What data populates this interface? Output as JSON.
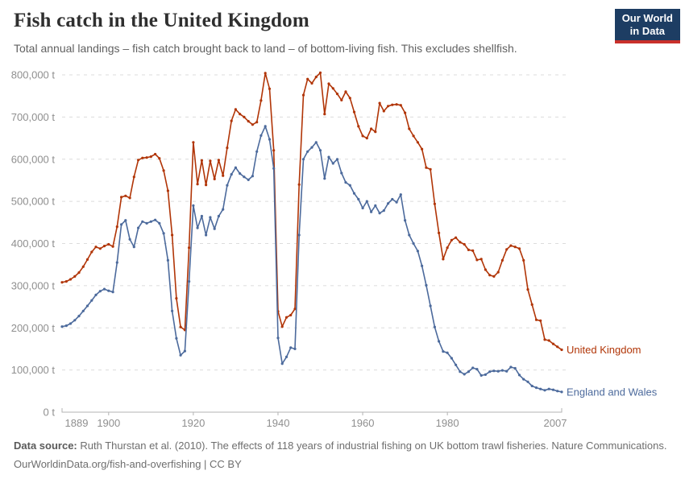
{
  "header": {
    "title": "Fish catch in the United Kingdom",
    "subtitle": "Total annual landings – fish catch brought back to land – of bottom-living fish. This excludes shellfish.",
    "logo": {
      "line1": "Our World",
      "line2": "in Data",
      "bg_color": "#1d3d63",
      "accent_color": "#c9302b"
    }
  },
  "chart_data": {
    "type": "line",
    "title": "Fish catch in the United Kingdom",
    "xlabel": "",
    "ylabel": "",
    "unit": "t",
    "ylim": [
      0,
      800000
    ],
    "xlim": [
      1889,
      2007
    ],
    "grid": "horizontal-dashed",
    "legend_position": "right-end-of-line-labels",
    "marker": "point",
    "colors": {
      "grid": "#dcdcdc",
      "axis": "#b3b3b3",
      "tick_label": "#8f8f8f"
    },
    "yticks": [
      {
        "value": 0,
        "label": "0 t"
      },
      {
        "value": 100000,
        "label": "100,000 t"
      },
      {
        "value": 200000,
        "label": "200,000 t"
      },
      {
        "value": 300000,
        "label": "300,000 t"
      },
      {
        "value": 400000,
        "label": "400,000 t"
      },
      {
        "value": 500000,
        "label": "500,000 t"
      },
      {
        "value": 600000,
        "label": "600,000 t"
      },
      {
        "value": 700000,
        "label": "700,000 t"
      },
      {
        "value": 800000,
        "label": "800,000 t"
      }
    ],
    "xticks": [
      {
        "value": 1889,
        "label": "1889"
      },
      {
        "value": 1900,
        "label": "1900"
      },
      {
        "value": 1920,
        "label": "1920"
      },
      {
        "value": 1940,
        "label": "1940"
      },
      {
        "value": 1960,
        "label": "1960"
      },
      {
        "value": 1980,
        "label": "1980"
      },
      {
        "value": 2007,
        "label": "2007"
      }
    ],
    "x": [
      1889,
      1890,
      1891,
      1892,
      1893,
      1894,
      1895,
      1896,
      1897,
      1898,
      1899,
      1900,
      1901,
      1902,
      1903,
      1904,
      1905,
      1906,
      1907,
      1908,
      1909,
      1910,
      1911,
      1912,
      1913,
      1914,
      1915,
      1916,
      1917,
      1918,
      1919,
      1920,
      1921,
      1922,
      1923,
      1924,
      1925,
      1926,
      1927,
      1928,
      1929,
      1930,
      1931,
      1932,
      1933,
      1934,
      1935,
      1936,
      1937,
      1938,
      1939,
      1940,
      1941,
      1942,
      1943,
      1944,
      1945,
      1946,
      1947,
      1948,
      1949,
      1950,
      1951,
      1952,
      1953,
      1954,
      1955,
      1956,
      1957,
      1958,
      1959,
      1960,
      1961,
      1962,
      1963,
      1964,
      1965,
      1966,
      1967,
      1968,
      1969,
      1970,
      1971,
      1972,
      1973,
      1974,
      1975,
      1976,
      1977,
      1978,
      1979,
      1980,
      1981,
      1982,
      1983,
      1984,
      1985,
      1986,
      1987,
      1988,
      1989,
      1990,
      1991,
      1992,
      1993,
      1994,
      1995,
      1996,
      1997,
      1998,
      1999,
      2000,
      2001,
      2002,
      2003,
      2004,
      2005,
      2006,
      2007
    ],
    "series": [
      {
        "name": "United Kingdom",
        "color": "#B13507",
        "values": [
          308000,
          310000,
          315000,
          322000,
          331000,
          345000,
          362000,
          380000,
          392000,
          388000,
          394000,
          398000,
          393000,
          440000,
          510000,
          513000,
          508000,
          558000,
          598000,
          603000,
          604000,
          606000,
          612000,
          602000,
          573000,
          525000,
          420000,
          270000,
          202000,
          195000,
          390000,
          640000,
          541000,
          597000,
          539000,
          596000,
          553000,
          598000,
          561000,
          627000,
          691000,
          718000,
          707000,
          700000,
          690000,
          682000,
          688000,
          739000,
          804000,
          767000,
          621000,
          239000,
          203000,
          225000,
          230000,
          245000,
          540000,
          752000,
          790000,
          780000,
          795000,
          805000,
          707000,
          779000,
          768000,
          755000,
          740000,
          760000,
          745000,
          712000,
          678000,
          655000,
          650000,
          672000,
          665000,
          733000,
          714000,
          726000,
          729000,
          730000,
          728000,
          710000,
          672000,
          655000,
          640000,
          624000,
          580000,
          576000,
          494000,
          425000,
          363000,
          390000,
          408000,
          414000,
          403000,
          398000,
          385000,
          383000,
          361000,
          363000,
          338000,
          325000,
          322000,
          332000,
          360000,
          386000,
          395000,
          392000,
          388000,
          360000,
          291000,
          255000,
          219000,
          217000,
          172000,
          170000,
          162000,
          155000,
          148000
        ]
      },
      {
        "name": "England and Wales",
        "color": "#4C6A9C",
        "values": [
          203000,
          205000,
          210000,
          218000,
          228000,
          240000,
          252000,
          265000,
          278000,
          287000,
          292000,
          288000,
          285000,
          355000,
          445000,
          455000,
          410000,
          392000,
          437000,
          452000,
          448000,
          452000,
          456000,
          448000,
          424000,
          360000,
          240000,
          175000,
          135000,
          145000,
          310000,
          490000,
          437000,
          465000,
          420000,
          462000,
          435000,
          465000,
          481000,
          538000,
          564000,
          580000,
          566000,
          558000,
          551000,
          560000,
          618000,
          656000,
          678000,
          647000,
          578000,
          176000,
          115000,
          131000,
          153000,
          150000,
          420000,
          600000,
          618000,
          628000,
          640000,
          621000,
          554000,
          605000,
          590000,
          600000,
          567000,
          545000,
          538000,
          519000,
          505000,
          484000,
          500000,
          475000,
          490000,
          472000,
          478000,
          495000,
          505000,
          498000,
          516000,
          455000,
          420000,
          400000,
          382000,
          347000,
          301000,
          252000,
          202000,
          168000,
          144000,
          141000,
          128000,
          112000,
          96000,
          90000,
          96000,
          105000,
          102000,
          87000,
          89000,
          96000,
          98000,
          97000,
          99000,
          97000,
          107000,
          104000,
          88000,
          78000,
          72000,
          62000,
          58000,
          55000,
          52000,
          55000,
          53000,
          50000,
          48000
        ]
      }
    ]
  },
  "footer": {
    "source_prefix": "Data source:",
    "source_text": " Ruth Thurstan et al. (2010). The effects of 118 years of industrial fishing on UK bottom trawl fisheries. Nature Communications.",
    "link": "OurWorldinData.org/fish-and-overfishing",
    "license": " | CC BY"
  }
}
